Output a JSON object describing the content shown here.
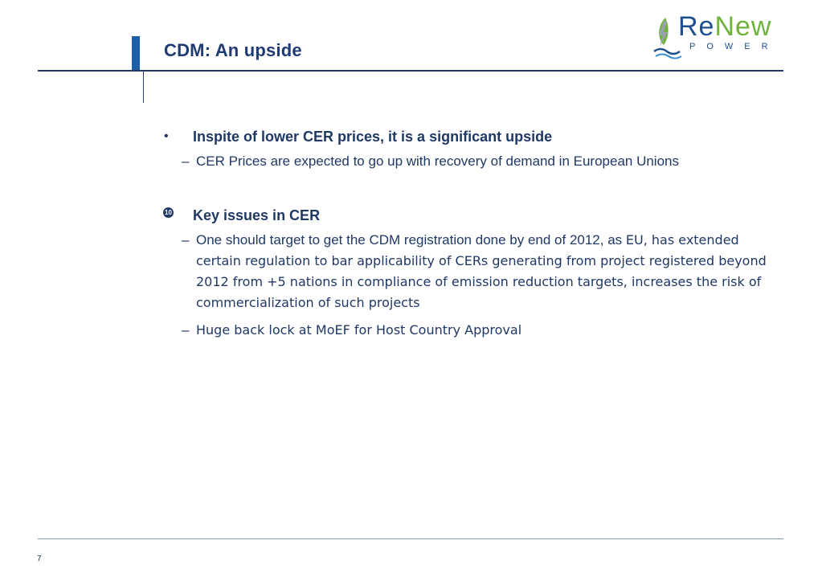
{
  "slide": {
    "title": "CDM: An upside",
    "page_number": "7"
  },
  "logo": {
    "word_part1": "Re",
    "word_part2": "New",
    "subtitle": "POWER",
    "icon": "leaf-lightning-wave-icon",
    "colors": {
      "primary": "#1e4f8e",
      "accent": "#6fb33d"
    }
  },
  "bullets": [
    {
      "glyph": "•",
      "heading": "Inspite of lower CER prices, it is a significant upside",
      "subpoints": [
        {
          "dash": "–",
          "text": "CER Prices are expected to go up with recovery of demand in European Unions"
        }
      ]
    },
    {
      "glyph": "⑩",
      "heading": "Key issues in CER",
      "subpoints": [
        {
          "dash": "–",
          "text_a": "One  should target to get the CDM registration done by end of 2012, as ",
          "text_b": "EU, has extended certain regulation to bar applicability of CERs generating from project registered beyond 2012 from +5 nations in compliance of emission reduction targets, increases the risk of commercialization of such projects"
        },
        {
          "dash": "–",
          "text": "Huge back lock at MoEF for Host Country Approval"
        }
      ]
    }
  ],
  "colors": {
    "text": "#1f3864",
    "title": "#1f3b73",
    "accent_bar": "#1f5fa8"
  }
}
